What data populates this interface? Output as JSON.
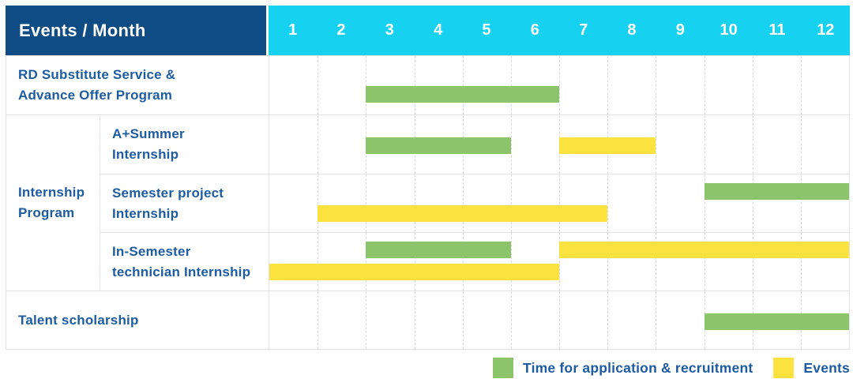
{
  "colors": {
    "header_navy": "#0F4C84",
    "header_cyan": "#16D1EF",
    "label_blue": "#1D5CA1",
    "application": "#8CC46B",
    "event": "#FCE23E",
    "grid_border": "#E3E3E3"
  },
  "legend": {
    "items": [
      {
        "kind": "application",
        "label": "Time for application & recruitment",
        "color": "#8CC46B"
      },
      {
        "kind": "event",
        "label": "Events",
        "color": "#FCE23E"
      }
    ]
  },
  "chart_data": {
    "type": "table",
    "subtype": "gantt",
    "title": "Events / Month",
    "xlabel": "Month",
    "months": [
      "1",
      "2",
      "3",
      "4",
      "5",
      "6",
      "7",
      "8",
      "9",
      "10",
      "11",
      "12"
    ],
    "x_range": [
      1,
      12
    ],
    "grid": "dashed-vertical-month-lines",
    "legend_position": "bottom-right",
    "series_meaning": {
      "application": "Time for application & recruitment",
      "event": "Events"
    },
    "rows": [
      {
        "type": "simple",
        "id": "rd-substitute-service",
        "label_lines": [
          "RD Substitute Service &",
          "Advance Offer Program"
        ],
        "bars": [
          {
            "kind": "application",
            "start_month": 3,
            "end_month": 6,
            "line": "low"
          }
        ]
      },
      {
        "type": "group",
        "id": "internship-program",
        "label_lines": [
          "Internship",
          "Program"
        ],
        "children": [
          {
            "id": "a-plus-summer-internship",
            "label_lines": [
              "A+Summer",
              "Internship"
            ],
            "bars": [
              {
                "kind": "application",
                "start_month": 3,
                "end_month": 5,
                "line": "mid"
              },
              {
                "kind": "event",
                "start_month": 7,
                "end_month": 8,
                "line": "mid"
              }
            ]
          },
          {
            "id": "semester-project-internship",
            "label_lines": [
              "Semester project",
              "Internship"
            ],
            "bars": [
              {
                "kind": "application",
                "start_month": 10,
                "end_month": 12,
                "line": "top"
              },
              {
                "kind": "event",
                "start_month": 2,
                "end_month": 7,
                "line": "bottom"
              }
            ]
          },
          {
            "id": "in-semester-technician-internship",
            "label_lines": [
              "In-Semester",
              "technician Internship"
            ],
            "bars": [
              {
                "kind": "application",
                "start_month": 3,
                "end_month": 5,
                "line": "top"
              },
              {
                "kind": "event",
                "start_month": 7,
                "end_month": 12,
                "line": "top"
              },
              {
                "kind": "event",
                "start_month": 1,
                "end_month": 6,
                "line": "bottom"
              }
            ]
          }
        ]
      },
      {
        "type": "simple",
        "id": "talent-scholarship",
        "label_lines": [
          "Talent scholarship"
        ],
        "bars": [
          {
            "kind": "application",
            "start_month": 10,
            "end_month": 12,
            "line": "mid"
          }
        ]
      }
    ]
  }
}
